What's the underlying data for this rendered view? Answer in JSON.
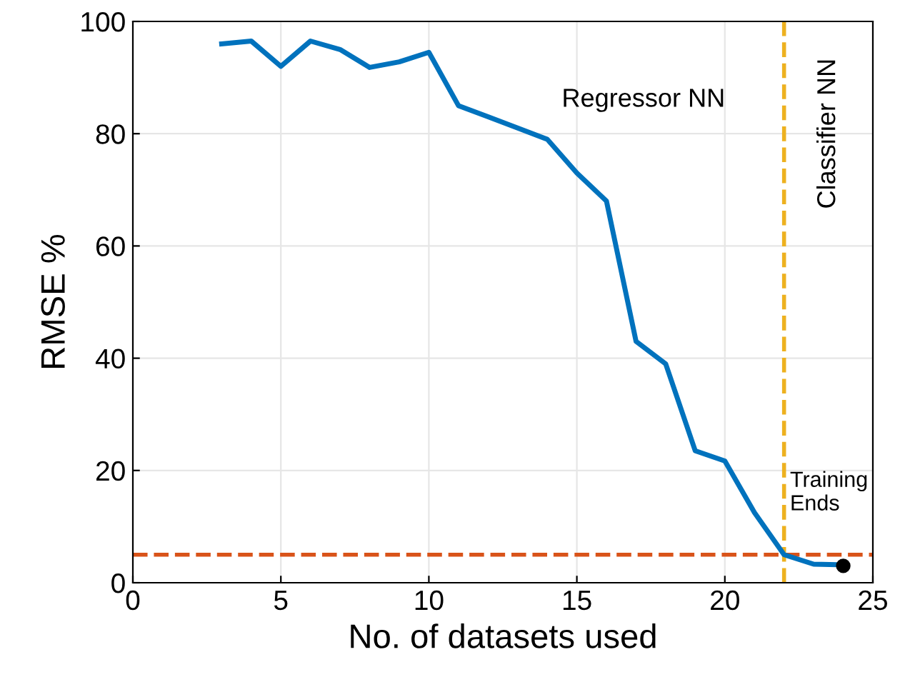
{
  "chart_data": {
    "type": "line",
    "xlabel": "No. of datasets used",
    "ylabel": "RMSE %",
    "x": [
      3,
      4,
      5,
      6,
      7,
      8,
      9,
      10,
      11,
      12,
      13,
      14,
      15,
      16,
      17,
      18,
      19,
      20,
      21,
      22,
      23,
      24
    ],
    "series": [
      {
        "color": "#0072bd",
        "values": [
          96,
          96.5,
          92,
          96.5,
          95,
          91.8,
          92.8,
          94.5,
          85,
          83,
          81,
          79,
          73,
          68,
          43,
          39,
          23.5,
          21.7,
          12.5,
          5,
          3.3,
          3.2
        ]
      },
      {
        "type": "scatter",
        "color": "#000000",
        "x": [
          24
        ],
        "values": [
          3
        ]
      }
    ],
    "xlim": [
      0,
      25
    ],
    "ylim": [
      0,
      100
    ],
    "xticks": [
      0,
      5,
      10,
      15,
      20,
      25
    ],
    "yticks": [
      0,
      20,
      40,
      60,
      80,
      100
    ],
    "grid": true,
    "ref_lines": [
      {
        "axis": "y",
        "value": 5,
        "color": "#d95319",
        "line_style": "dashed"
      },
      {
        "axis": "x",
        "value": 22,
        "color": "#edb120",
        "line_style": "dashed"
      }
    ],
    "annotations": [
      "Regressor NN",
      "Classifier NN",
      {
        "text": "Training Ends",
        "x": 22.2,
        "y": 16
      }
    ]
  }
}
